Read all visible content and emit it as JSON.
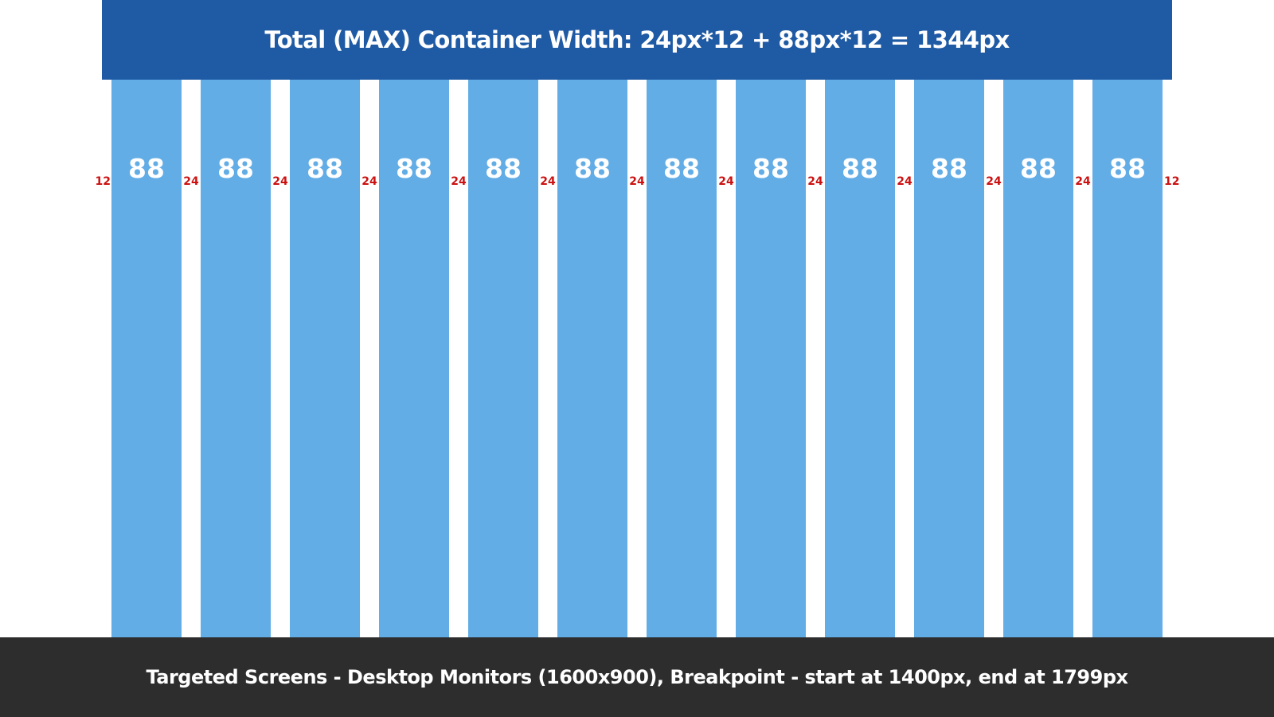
{
  "header": {
    "title": "Total (MAX) Container Width: 24px*12 + 88px*12 = 1344px"
  },
  "grid": {
    "outer_gutter_label": "12",
    "inner_gutter_label": "24",
    "column_label": "88",
    "column_count": 12,
    "column_color": "#63ade6"
  },
  "colors": {
    "header_bg": "#1f5aa4",
    "footer_bg": "#2d2d2d",
    "gutter_label": "#cc1111"
  },
  "footer": {
    "text": "Targeted Screens - Desktop Monitors (1600x900), Breakpoint - start at 1400px, end at 1799px"
  }
}
